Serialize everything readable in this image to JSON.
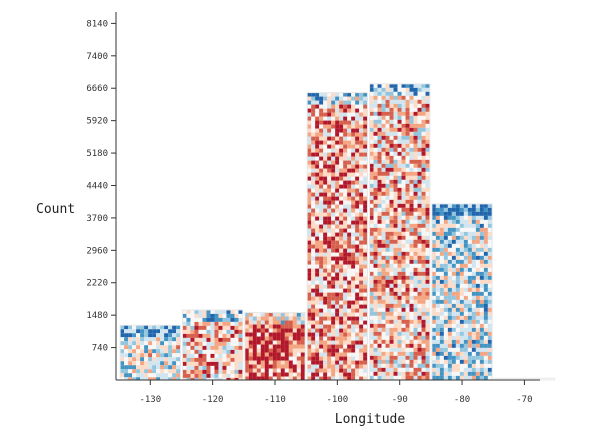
{
  "chart_data": {
    "type": "bar",
    "title": "",
    "xlabel": "Longitude",
    "ylabel": "Count",
    "x_ticks": [
      -130,
      -120,
      -110,
      -100,
      -90,
      -80,
      -70
    ],
    "y_ticks": [
      740,
      1480,
      2220,
      2960,
      3700,
      4440,
      5180,
      5920,
      6660,
      7400,
      8140
    ],
    "xlim": [
      -135.5,
      -67.5
    ],
    "ylim": [
      0,
      8400
    ],
    "bins": [
      {
        "x0": -135,
        "x1": -125,
        "value": 1250
      },
      {
        "x0": -125,
        "x1": -115,
        "value": 1600
      },
      {
        "x0": -115,
        "x1": -105,
        "value": 1540
      },
      {
        "x0": -105,
        "x1": -95,
        "value": 6560
      },
      {
        "x0": -95,
        "x1": -85,
        "value": 6760
      },
      {
        "x0": -85,
        "x1": -75,
        "value": 4020
      },
      {
        "x0": -75,
        "x1": -65,
        "value": 40
      }
    ],
    "fill_palette": [
      "#2166ac",
      "#4393c3",
      "#92c5de",
      "#d1e5f0",
      "#f7f7f7",
      "#fddbc7",
      "#f4a582",
      "#d6604d",
      "#b2182b"
    ],
    "bin_warmth": [
      0.45,
      0.65,
      0.88,
      0.72,
      0.62,
      0.4,
      0.5
    ],
    "grid": false,
    "legend": "none"
  }
}
